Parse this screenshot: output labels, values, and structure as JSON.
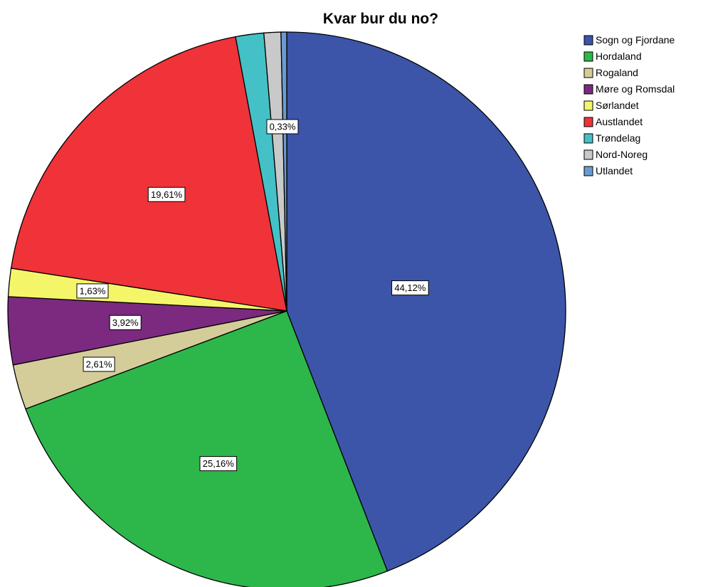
{
  "chart_data": {
    "type": "pie",
    "title": "Kvar bur du no?",
    "legend_position": "top-right",
    "start_angle": "top",
    "direction": "clockwise",
    "slices": [
      {
        "name": "Sogn og Fjordane",
        "value": 44.12,
        "label": "44,12%",
        "color": "#3c55a9"
      },
      {
        "name": "Hordaland",
        "value": 25.16,
        "label": "25,16%",
        "color": "#2db74a"
      },
      {
        "name": "Rogaland",
        "value": 2.61,
        "label": "2,61%",
        "color": "#d4cd9a"
      },
      {
        "name": "Møre og Romsdal",
        "value": 3.92,
        "label": "3,92%",
        "color": "#7b2a7f"
      },
      {
        "name": "Sørlandet",
        "value": 1.63,
        "label": "1,63%",
        "color": "#f5f56a"
      },
      {
        "name": "Austlandet",
        "value": 19.61,
        "label": "19,61%",
        "color": "#ef3339"
      },
      {
        "name": "Trøndelag",
        "value": 1.63,
        "label": "",
        "color": "#44c1c6"
      },
      {
        "name": "Nord-Noreg",
        "value": 0.98,
        "label": "",
        "color": "#c9c9c9"
      },
      {
        "name": "Utlandet",
        "value": 0.33,
        "label": "0,33%",
        "color": "#6c9bd2"
      }
    ]
  }
}
